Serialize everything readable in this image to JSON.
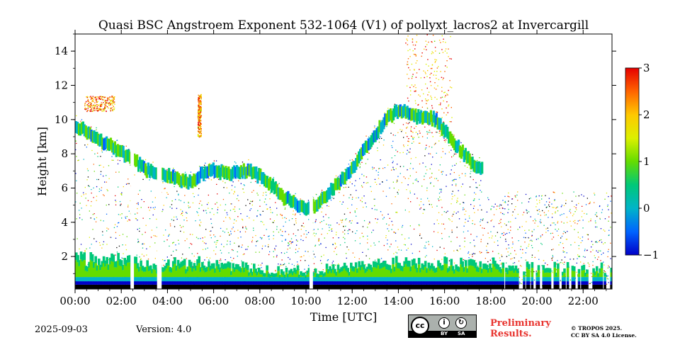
{
  "chart_data": {
    "type": "heatmap",
    "title": "Quasi BSC Angstroem Exponent 532-1064 (V1) of pollyxt_lacros2 at Invercargill",
    "xlabel": "Time [UTC]",
    "ylabel": "Height [km]",
    "xlim": [
      0,
      23.25
    ],
    "ylim": [
      0.1,
      15
    ],
    "x_ticks": [
      {
        "value": 0,
        "label": "00:00"
      },
      {
        "value": 2,
        "label": "02:00"
      },
      {
        "value": 4,
        "label": "04:00"
      },
      {
        "value": 6,
        "label": "06:00"
      },
      {
        "value": 8,
        "label": "08:00"
      },
      {
        "value": 10,
        "label": "10:00"
      },
      {
        "value": 12,
        "label": "12:00"
      },
      {
        "value": 14,
        "label": "14:00"
      },
      {
        "value": 16,
        "label": "16:00"
      },
      {
        "value": 18,
        "label": "18:00"
      },
      {
        "value": 20,
        "label": "20:00"
      },
      {
        "value": 22,
        "label": "22:00"
      }
    ],
    "y_ticks": [
      {
        "value": 2,
        "label": "2"
      },
      {
        "value": 4,
        "label": "4"
      },
      {
        "value": 6,
        "label": "6"
      },
      {
        "value": 8,
        "label": "8"
      },
      {
        "value": 10,
        "label": "10"
      },
      {
        "value": 12,
        "label": "12"
      },
      {
        "value": 14,
        "label": "14"
      }
    ],
    "colorbar": {
      "min": -1,
      "max": 3,
      "ticks": [
        {
          "value": 3,
          "label": "3"
        },
        {
          "value": 2,
          "label": "2"
        },
        {
          "value": 1,
          "label": "1"
        },
        {
          "value": 0,
          "label": "0"
        },
        {
          "value": -1,
          "label": "−1"
        }
      ],
      "colormap": [
        "#0000c8",
        "#0064ff",
        "#00b4c8",
        "#00c878",
        "#64dc00",
        "#dcf000",
        "#ffc800",
        "#ff6400",
        "#e60000"
      ]
    },
    "features": {
      "cloud_top_km": [
        [
          0.0,
          10.0
        ],
        [
          0.5,
          9.6
        ],
        [
          1.0,
          9.2
        ],
        [
          1.5,
          8.8
        ],
        [
          2.0,
          8.4
        ],
        [
          2.5,
          8.0
        ],
        [
          3.0,
          7.4
        ],
        [
          3.5,
          7.2
        ],
        [
          4.0,
          7.1
        ],
        [
          4.5,
          6.8
        ],
        [
          5.0,
          6.7
        ],
        [
          5.5,
          7.2
        ],
        [
          6.0,
          7.4
        ],
        [
          6.5,
          7.2
        ],
        [
          7.0,
          7.3
        ],
        [
          7.5,
          7.4
        ],
        [
          8.0,
          7.0
        ],
        [
          8.5,
          6.5
        ],
        [
          9.0,
          5.8
        ],
        [
          9.5,
          5.5
        ],
        [
          10.0,
          5.0
        ],
        [
          10.5,
          5.5
        ],
        [
          11.0,
          6.2
        ],
        [
          11.5,
          6.8
        ],
        [
          12.0,
          7.6
        ],
        [
          12.5,
          8.6
        ],
        [
          13.0,
          9.6
        ],
        [
          13.5,
          10.4
        ],
        [
          14.0,
          10.9
        ],
        [
          14.5,
          10.6
        ],
        [
          15.0,
          10.5
        ],
        [
          15.5,
          10.4
        ],
        [
          16.0,
          9.6
        ],
        [
          16.5,
          8.8
        ],
        [
          17.0,
          8.0
        ],
        [
          17.5,
          7.5
        ]
      ],
      "cloud_thickness_km": 0.7,
      "boundary_layer_top_km": [
        [
          0.0,
          2.0
        ],
        [
          2.0,
          2.0
        ],
        [
          4.0,
          1.7
        ],
        [
          6.0,
          1.8
        ],
        [
          8.0,
          1.3
        ],
        [
          10.0,
          1.3
        ],
        [
          12.0,
          1.5
        ],
        [
          14.0,
          1.9
        ],
        [
          16.0,
          1.8
        ],
        [
          18.0,
          1.7
        ],
        [
          20.0,
          1.5
        ],
        [
          22.0,
          1.5
        ],
        [
          23.25,
          1.4
        ]
      ],
      "data_gaps_utc": [
        [
          2.4,
          2.55
        ],
        [
          3.55,
          3.75
        ],
        [
          10.15,
          10.3
        ]
      ],
      "upper_cirrus_utc": [
        [
          14.3,
          16.3,
          8.5,
          15.0
        ],
        [
          0.4,
          1.7,
          10.5,
          11.4
        ],
        [
          5.3,
          5.45,
          9.0,
          11.5
        ]
      ]
    }
  },
  "footer": {
    "date": "2025-09-03",
    "version": "Version: 4.0",
    "preliminary": "Preliminary Results.",
    "cc_label": "cc",
    "cc_by": "BY",
    "cc_sa": "SA",
    "license_line1": "© TROPOS 2025.",
    "license_line2": "CC BY SA 4.0 License."
  }
}
